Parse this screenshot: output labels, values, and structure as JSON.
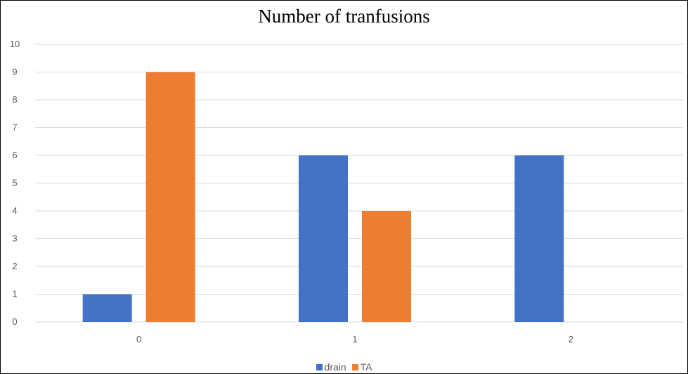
{
  "chart_data": {
    "type": "bar",
    "title": "Number of tranfusions",
    "xlabel": "",
    "ylabel": "",
    "categories": [
      "0",
      "1",
      "2"
    ],
    "series": [
      {
        "name": "drain",
        "color": "#4472C4",
        "values": [
          1,
          6,
          6
        ]
      },
      {
        "name": "TA",
        "color": "#ED7D31",
        "values": [
          9,
          4,
          0
        ]
      }
    ],
    "ylim": [
      0,
      10
    ],
    "yticks": [
      "0",
      "1",
      "2",
      "3",
      "4",
      "5",
      "6",
      "7",
      "8",
      "9",
      "10"
    ],
    "grid": true,
    "legend_position": "bottom"
  }
}
